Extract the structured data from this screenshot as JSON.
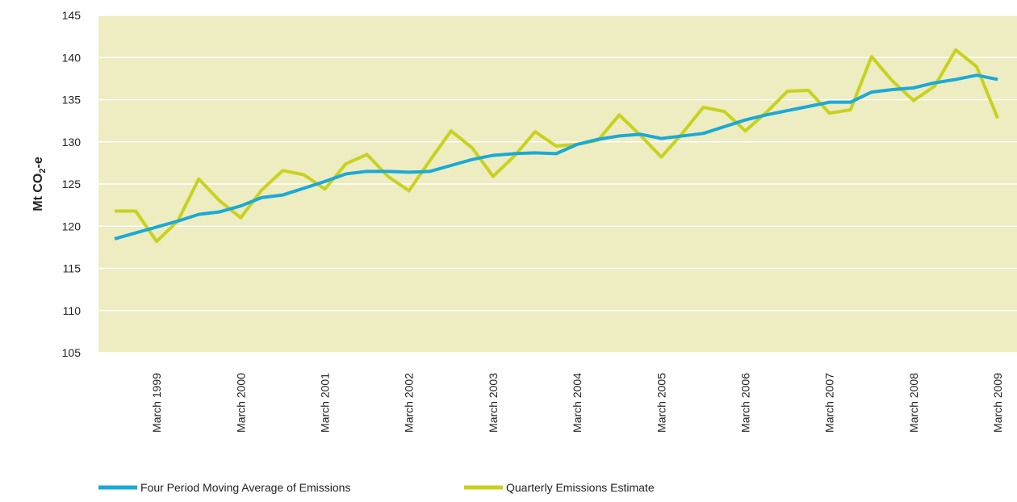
{
  "chart_data": {
    "type": "line",
    "y_label": {
      "text": "Mt CO",
      "subscript": "2",
      "suffix": "-e"
    },
    "categories": [
      null,
      null,
      "March 1999",
      null,
      null,
      null,
      "March 2000",
      null,
      null,
      null,
      "March 2001",
      null,
      null,
      null,
      "March 2002",
      null,
      null,
      null,
      "March 2003",
      null,
      null,
      null,
      "March 2004",
      null,
      null,
      null,
      "March 2005",
      null,
      null,
      null,
      "March 2006",
      null,
      null,
      null,
      "March 2007",
      null,
      null,
      null,
      "March 2008",
      null,
      null,
      null,
      "March 2009"
    ],
    "series": [
      {
        "name": "Four Period Moving Average of Emissions",
        "color": "#1ba9d6",
        "values": [
          118.5,
          119.2,
          119.9,
          120.6,
          121.4,
          121.7,
          122.4,
          123.4,
          123.7,
          124.5,
          125.3,
          126.2,
          126.5,
          126.5,
          126.4,
          126.5,
          127.2,
          127.9,
          128.4,
          128.6,
          128.7,
          128.6,
          129.7,
          130.3,
          130.7,
          130.9,
          130.4,
          130.7,
          131.0,
          131.8,
          132.6,
          133.2,
          133.7,
          134.2,
          134.7,
          134.7,
          135.9,
          136.2,
          136.4,
          137.0,
          137.4,
          137.9,
          137.4
        ]
      },
      {
        "name": "Quarterly Emissions Estimate",
        "color": "#c8d21e",
        "values": [
          121.8,
          121.8,
          118.2,
          120.6,
          125.6,
          123.0,
          121.0,
          124.3,
          126.6,
          126.1,
          124.4,
          127.4,
          128.5,
          125.9,
          124.2,
          127.8,
          131.3,
          129.3,
          125.9,
          128.3,
          131.2,
          129.5,
          129.7,
          130.2,
          133.2,
          130.8,
          128.2,
          131.0,
          134.1,
          133.6,
          131.3,
          133.5,
          136.0,
          136.1,
          133.4,
          133.8,
          140.1,
          137.2,
          134.9,
          136.6,
          140.9,
          138.9,
          132.8
        ]
      }
    ],
    "ylim": [
      105,
      145
    ],
    "yticks": [
      105,
      110,
      115,
      120,
      125,
      130,
      135,
      140,
      145
    ],
    "grid": true,
    "grid_color": "#ffffff",
    "plot_background": "#eeecc1",
    "legend": "bottom"
  }
}
